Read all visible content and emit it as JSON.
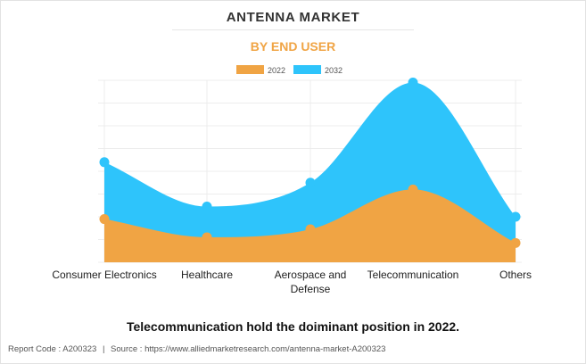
{
  "header": {
    "title": "ANTENNA MARKET",
    "subtitle": "BY END USER"
  },
  "footer": {
    "footnote": "Telecommunication hold the doiminant position in 2022.",
    "report_code_label": "Report Code : A200323",
    "separator": "|",
    "source_label": "Source : https://www.alliedmarketresearch.com/antenna-market-A200323"
  },
  "colors": {
    "series_2022": "#f0a444",
    "series_2032": "#2ec4fb",
    "subtitle": "#f0a444"
  },
  "chart_data": {
    "type": "area",
    "title": "ANTENNA MARKET",
    "subtitle": "BY END USER",
    "categories": [
      "Consumer Electronics",
      "Healthcare",
      "Aerospace and Defense",
      "Telecommunication",
      "Others"
    ],
    "category_lines": [
      [
        "Consumer Electronics"
      ],
      [
        "Healthcare"
      ],
      [
        "Aerospace and",
        "Defense"
      ],
      [
        "Telecommunication"
      ],
      [
        "Others"
      ]
    ],
    "series": [
      {
        "name": "2022",
        "values": [
          1.9,
          1.1,
          1.45,
          3.2,
          0.85
        ]
      },
      {
        "name": "2032",
        "values": [
          4.4,
          2.45,
          3.5,
          7.9,
          2.0
        ]
      }
    ],
    "ylim": [
      0,
      8
    ],
    "yaxis_labels_visible": false,
    "grid": true,
    "legend": "top-center",
    "stacked": false,
    "xlabel": "",
    "ylabel": ""
  }
}
